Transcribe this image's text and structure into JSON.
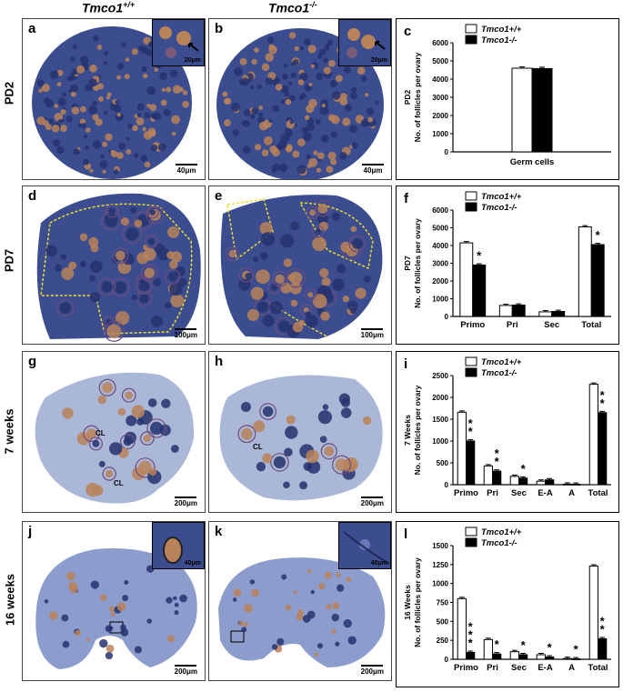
{
  "columns": {
    "wt": "Tmco1",
    "wt_sup": "+/+",
    "ko": "Tmco1",
    "ko_sup": "-/-"
  },
  "rows": [
    "PD2",
    "PD7",
    "7 weeks",
    "16 weeks"
  ],
  "panels": [
    {
      "letter": "a",
      "scale": "40μm",
      "inset_scale": "20μm"
    },
    {
      "letter": "b",
      "scale": "40μm",
      "inset_scale": "20μm"
    },
    {
      "letter": "d",
      "scale": "100μm"
    },
    {
      "letter": "e",
      "scale": "100μm"
    },
    {
      "letter": "g",
      "scale": "200μm",
      "marks": [
        "CL",
        "CL"
      ]
    },
    {
      "letter": "h",
      "scale": "200μm",
      "marks": [
        "CL"
      ]
    },
    {
      "letter": "j",
      "scale": "200μm",
      "inset_scale": "40μm"
    },
    {
      "letter": "k",
      "scale": "200μm",
      "inset_scale": "40μm"
    }
  ],
  "colors": {
    "wt_bar": "#ffffff",
    "ko_bar": "#000000",
    "stain_blue": "#3b4c8f",
    "stain_brown": "#b8835a",
    "outline_yellow": "#e8e030"
  },
  "chart_data": [
    {
      "letter": "c",
      "type": "bar",
      "ylabel_top": "PD2",
      "ylabel": "No. of follicles per ovary",
      "xlabel": "Germ cells",
      "ylim": [
        0,
        6000
      ],
      "yticks": [
        "0",
        "1000",
        "2000",
        "3000",
        "4000",
        "5000",
        "6000"
      ],
      "categories": [
        ""
      ],
      "series": [
        {
          "name": "Tmco1+/+",
          "values": [
            4600
          ]
        },
        {
          "name": "Tmco1-/-",
          "values": [
            4580
          ]
        }
      ],
      "stars": [
        ""
      ]
    },
    {
      "letter": "f",
      "type": "bar",
      "ylabel_top": "PD7",
      "ylabel": "No. of follicles per ovary",
      "ylim": [
        0,
        6000
      ],
      "yticks": [
        "0",
        "1000",
        "2000",
        "3000",
        "4000",
        "5000",
        "6000"
      ],
      "categories": [
        "Primo",
        "Pri",
        "Sec",
        "Total"
      ],
      "series": [
        {
          "name": "Tmco1+/+",
          "values": [
            4150,
            620,
            260,
            5050
          ]
        },
        {
          "name": "Tmco1-/-",
          "values": [
            2900,
            640,
            280,
            4050
          ]
        }
      ],
      "stars": [
        "*",
        "",
        "",
        "*"
      ]
    },
    {
      "letter": "i",
      "type": "bar",
      "ylabel_top": "7 Weeks",
      "ylabel": "No. of follicles per ovary",
      "ylim": [
        0,
        2500
      ],
      "yticks": [
        "0",
        "500",
        "1000",
        "1500",
        "2000",
        "2500"
      ],
      "categories": [
        "Primo",
        "Pri",
        "Sec",
        "E-A",
        "A",
        "Total"
      ],
      "series": [
        {
          "name": "Tmco1+/+",
          "values": [
            1660,
            430,
            190,
            80,
            12,
            2300
          ]
        },
        {
          "name": "Tmco1-/-",
          "values": [
            1000,
            310,
            150,
            110,
            10,
            1650
          ]
        }
      ],
      "stars": [
        "**",
        "**",
        "*",
        "",
        "",
        "**"
      ]
    },
    {
      "letter": "l",
      "type": "bar",
      "ylabel_top": "16 Weeks",
      "ylabel": "No. of follicles per ovary",
      "ylim": [
        0,
        1500
      ],
      "yticks": [
        "0",
        "250",
        "500",
        "750",
        "1000",
        "1250",
        "1500"
      ],
      "categories": [
        "Primo",
        "Pri",
        "Sec",
        "E-A",
        "A",
        "Total"
      ],
      "series": [
        {
          "name": "Tmco1+/+",
          "values": [
            800,
            260,
            100,
            60,
            10,
            1230
          ]
        },
        {
          "name": "Tmco1-/-",
          "values": [
            90,
            70,
            60,
            30,
            5,
            270
          ]
        }
      ],
      "stars": [
        "***",
        "*",
        "*",
        "*",
        "*",
        "**"
      ]
    }
  ]
}
